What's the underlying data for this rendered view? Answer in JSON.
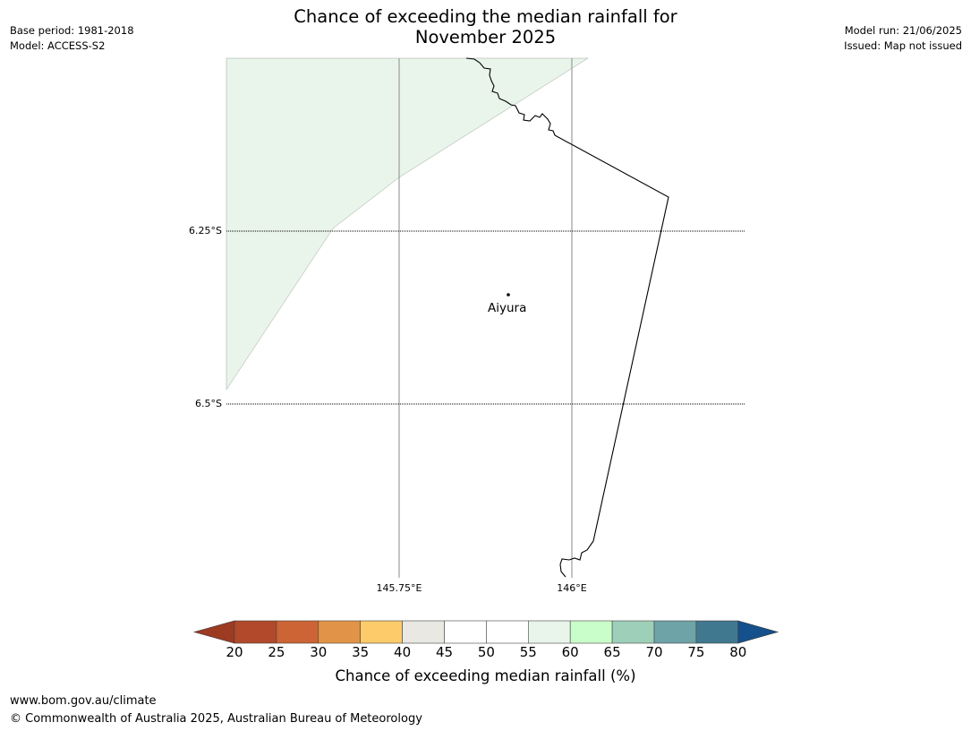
{
  "title_line1": "Chance of exceeding the median rainfall for",
  "title_line2": "November 2025",
  "meta": {
    "base_period": "Base period: 1981-2018",
    "model": "Model: ACCESS-S2",
    "model_run": "Model run: 21/06/2025",
    "issued": "Issued: Map not issued"
  },
  "map": {
    "latitude_labels": [
      "6.25°S",
      "6.5°S"
    ],
    "longitude_labels": [
      "145.75°E",
      "146°E"
    ],
    "places": [
      {
        "name": "Aiyura"
      }
    ],
    "shaded_region_color": "#e9f4ea",
    "shaded_region_value": "55-60"
  },
  "colorbar": {
    "ticks": [
      "20",
      "25",
      "30",
      "35",
      "40",
      "45",
      "50",
      "55",
      "60",
      "65",
      "70",
      "75",
      "80"
    ],
    "below_color": "#9c3b22",
    "above_color": "#15508c",
    "colors": [
      "#b1492a",
      "#cc6435",
      "#e19447",
      "#fdcb69",
      "#e9e8e3",
      "#ffffff",
      "#ffffff",
      "#e9f4ea",
      "#c9fdc9",
      "#9dcfb9",
      "#6ea3a7",
      "#40788f"
    ],
    "label": "Chance of exceeding median rainfall (%)"
  },
  "footer": {
    "url": "www.bom.gov.au/climate",
    "copyright": "© Commonwealth of Australia 2025, Australian Bureau of Meteorology"
  }
}
